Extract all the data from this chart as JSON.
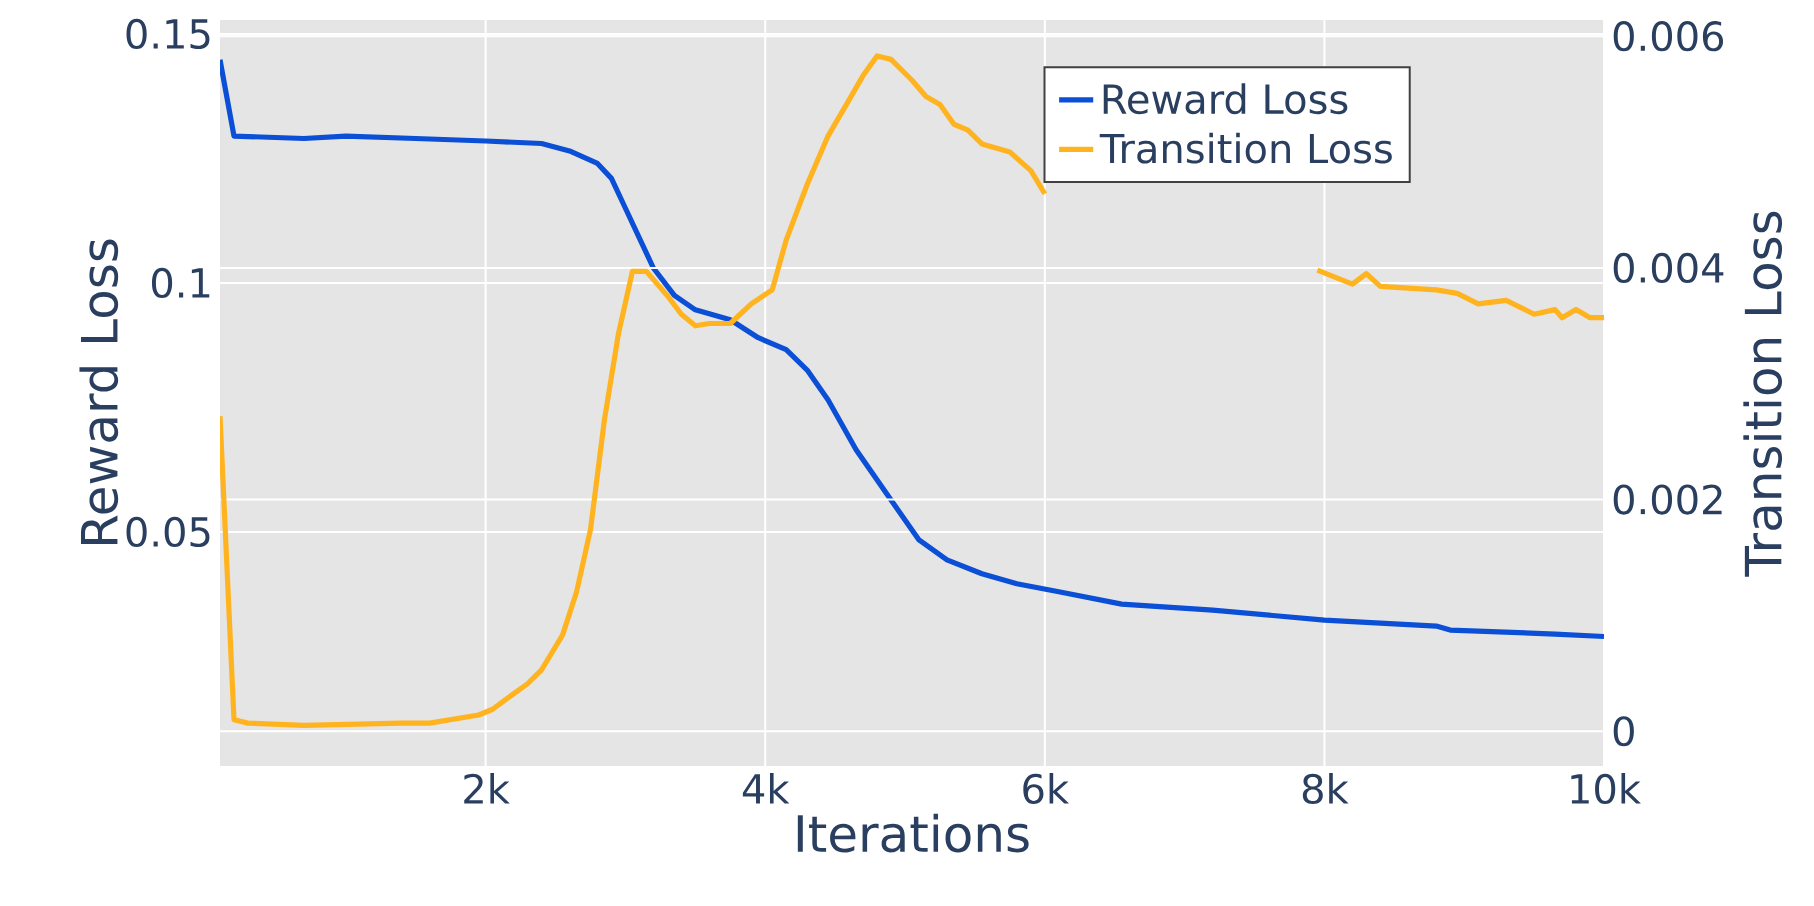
{
  "chart_data": {
    "type": "line",
    "xlabel": "Iterations",
    "ylabel": "Reward Loss",
    "y2label": "Transition Loss",
    "xlim": [
      100,
      10000
    ],
    "xticks": [
      {
        "value": 2000,
        "label": "2k"
      },
      {
        "value": 4000,
        "label": "4k"
      },
      {
        "value": 6000,
        "label": "6k"
      },
      {
        "value": 8000,
        "label": "8k"
      },
      {
        "value": 10000,
        "label": "10k"
      }
    ],
    "ylim": [
      0.003,
      0.1528
    ],
    "yticks": [
      0.05,
      0.1,
      0.15
    ],
    "y2lim": [
      -0.0003,
      0.00614
    ],
    "y2ticks": [
      0,
      0.002,
      0.004,
      0.006
    ],
    "grid": true,
    "legend": "top right",
    "line_style": "solid",
    "marker": "none",
    "series": [
      {
        "name": "Reward Loss",
        "color": "#0a4fd6",
        "x": [
          100,
          200,
          700,
          1000,
          1500,
          2000,
          2400,
          2600,
          2800,
          2900,
          3000,
          3100,
          3200,
          3350,
          3500,
          3750,
          3950,
          4150,
          4300,
          4450,
          4650,
          4900,
          5100,
          5300,
          5550,
          5800,
          6100,
          6550,
          7200,
          8000,
          8800,
          8900,
          9650,
          10000
        ],
        "values": [
          0.1448,
          0.1295,
          0.129,
          0.1295,
          0.129,
          0.1285,
          0.128,
          0.1265,
          0.124,
          0.121,
          0.115,
          0.109,
          0.103,
          0.0975,
          0.0946,
          0.0926,
          0.089,
          0.0866,
          0.0825,
          0.0765,
          0.0665,
          0.0564,
          0.0484,
          0.0444,
          0.0416,
          0.0396,
          0.038,
          0.0355,
          0.0343,
          0.0323,
          0.0311,
          0.0303,
          0.0295,
          0.029
        ]
      },
      {
        "name": "Transition Loss",
        "color": "#ffb31f",
        "axis": "y2",
        "x": [
          100,
          200,
          300,
          700,
          1400,
          1600,
          1950,
          2050,
          2150,
          2300,
          2400,
          2550,
          2650,
          2750,
          2850,
          2950,
          3050,
          3150,
          3300,
          3400,
          3500,
          3600,
          3750,
          3900,
          4050,
          4150,
          4300,
          4450,
          4600,
          4700,
          4800,
          4900,
          5050,
          5150,
          5250,
          5350,
          5450,
          5550,
          5750,
          5900,
          6000,
          7000,
          7950,
          8200,
          8300,
          8400,
          8800,
          8950,
          9100,
          9300,
          9500,
          9650,
          9700,
          9800,
          9900,
          10000
        ],
        "values": [
          0.00272,
          0.0001,
          7e-05,
          5e-05,
          7e-05,
          7e-05,
          0.00014,
          0.00019,
          0.00028,
          0.00041,
          0.00053,
          0.00083,
          0.0012,
          0.00174,
          0.00269,
          0.00343,
          0.00397,
          0.00397,
          0.00376,
          0.0036,
          0.0035,
          0.00352,
          0.00352,
          0.00369,
          0.00381,
          0.00424,
          0.00472,
          0.00514,
          0.00545,
          0.00566,
          0.00583,
          0.0058,
          0.00562,
          0.00548,
          0.00541,
          0.00524,
          0.00519,
          0.00507,
          0.005,
          0.00484,
          0.00464,
          null,
          0.00398,
          0.00386,
          0.00395,
          0.00384,
          0.00381,
          0.00378,
          0.00369,
          0.00372,
          0.0036,
          0.00364,
          0.00357,
          0.00364,
          0.00357,
          0.00357
        ]
      }
    ]
  }
}
